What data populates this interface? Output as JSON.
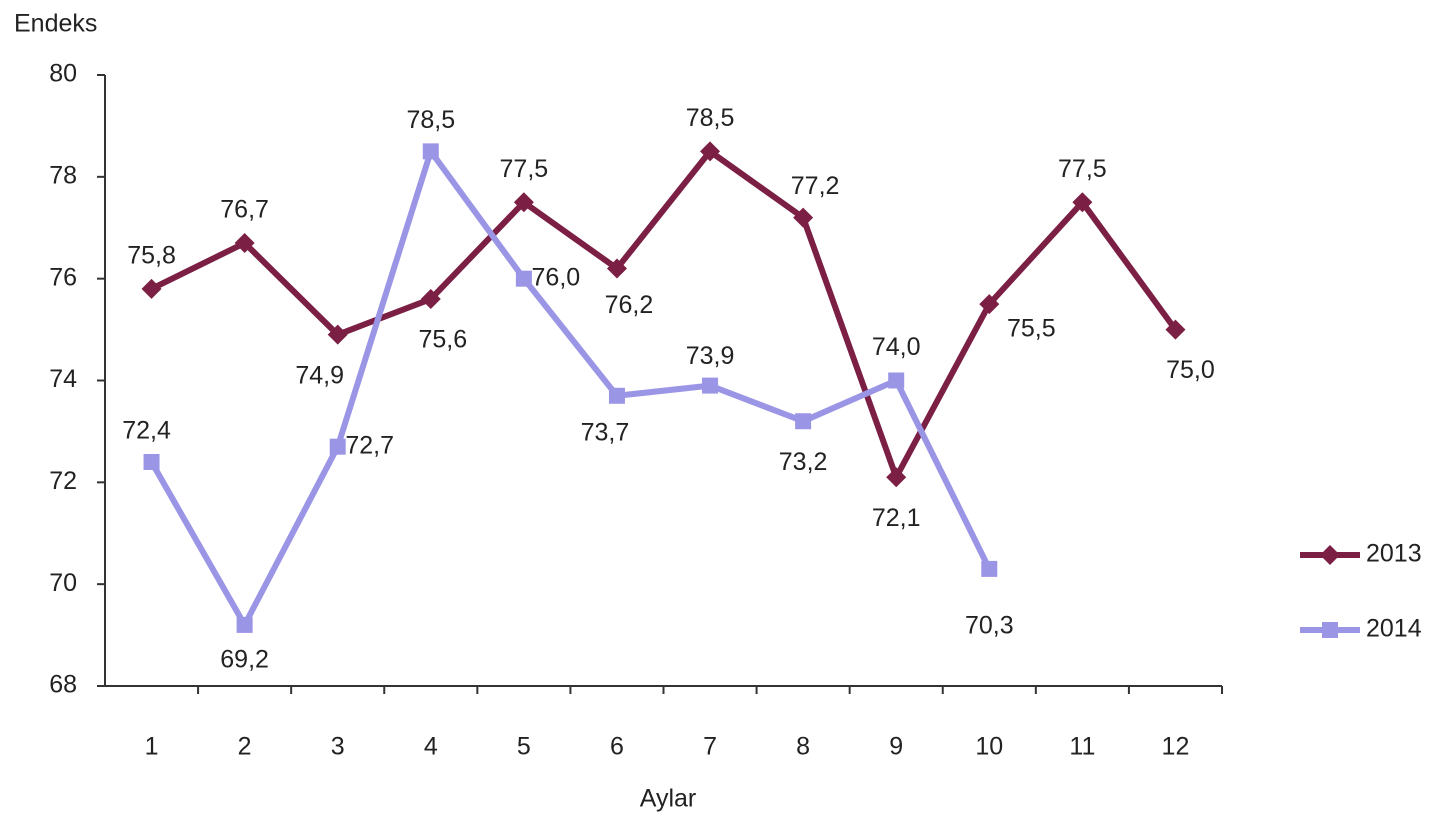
{
  "chart_data": {
    "type": "line",
    "y_label": "Endeks",
    "x_label": "Aylar",
    "categories": [
      "1",
      "2",
      "3",
      "4",
      "5",
      "6",
      "7",
      "8",
      "9",
      "10",
      "11",
      "12"
    ],
    "series": [
      {
        "name": "2013",
        "color": "#7b1f45",
        "marker": "diamond",
        "values": [
          75.8,
          76.7,
          74.9,
          75.6,
          77.5,
          76.2,
          78.5,
          77.2,
          72.1,
          75.5,
          77.5,
          75.0
        ],
        "value_labels": [
          "75,8",
          "76,7",
          "74,9",
          "75,6",
          "77,5",
          "76,2",
          "78,5",
          "77,2",
          "72,1",
          "75,5",
          "77,5",
          "75,0"
        ]
      },
      {
        "name": "2014",
        "color": "#9b95e6",
        "marker": "square",
        "values": [
          72.4,
          69.2,
          72.7,
          78.5,
          76.0,
          73.7,
          73.9,
          73.2,
          74.0,
          70.3,
          null,
          null
        ],
        "value_labels": [
          "72,4",
          "69,2",
          "72,7",
          "78,5",
          "76,0",
          "73,7",
          "73,9",
          "73,2",
          "74,0",
          "70,3",
          null,
          null
        ]
      }
    ],
    "ylim": [
      68,
      80
    ],
    "yticks": [
      68,
      70,
      72,
      74,
      76,
      78,
      80
    ],
    "legend": "right"
  }
}
